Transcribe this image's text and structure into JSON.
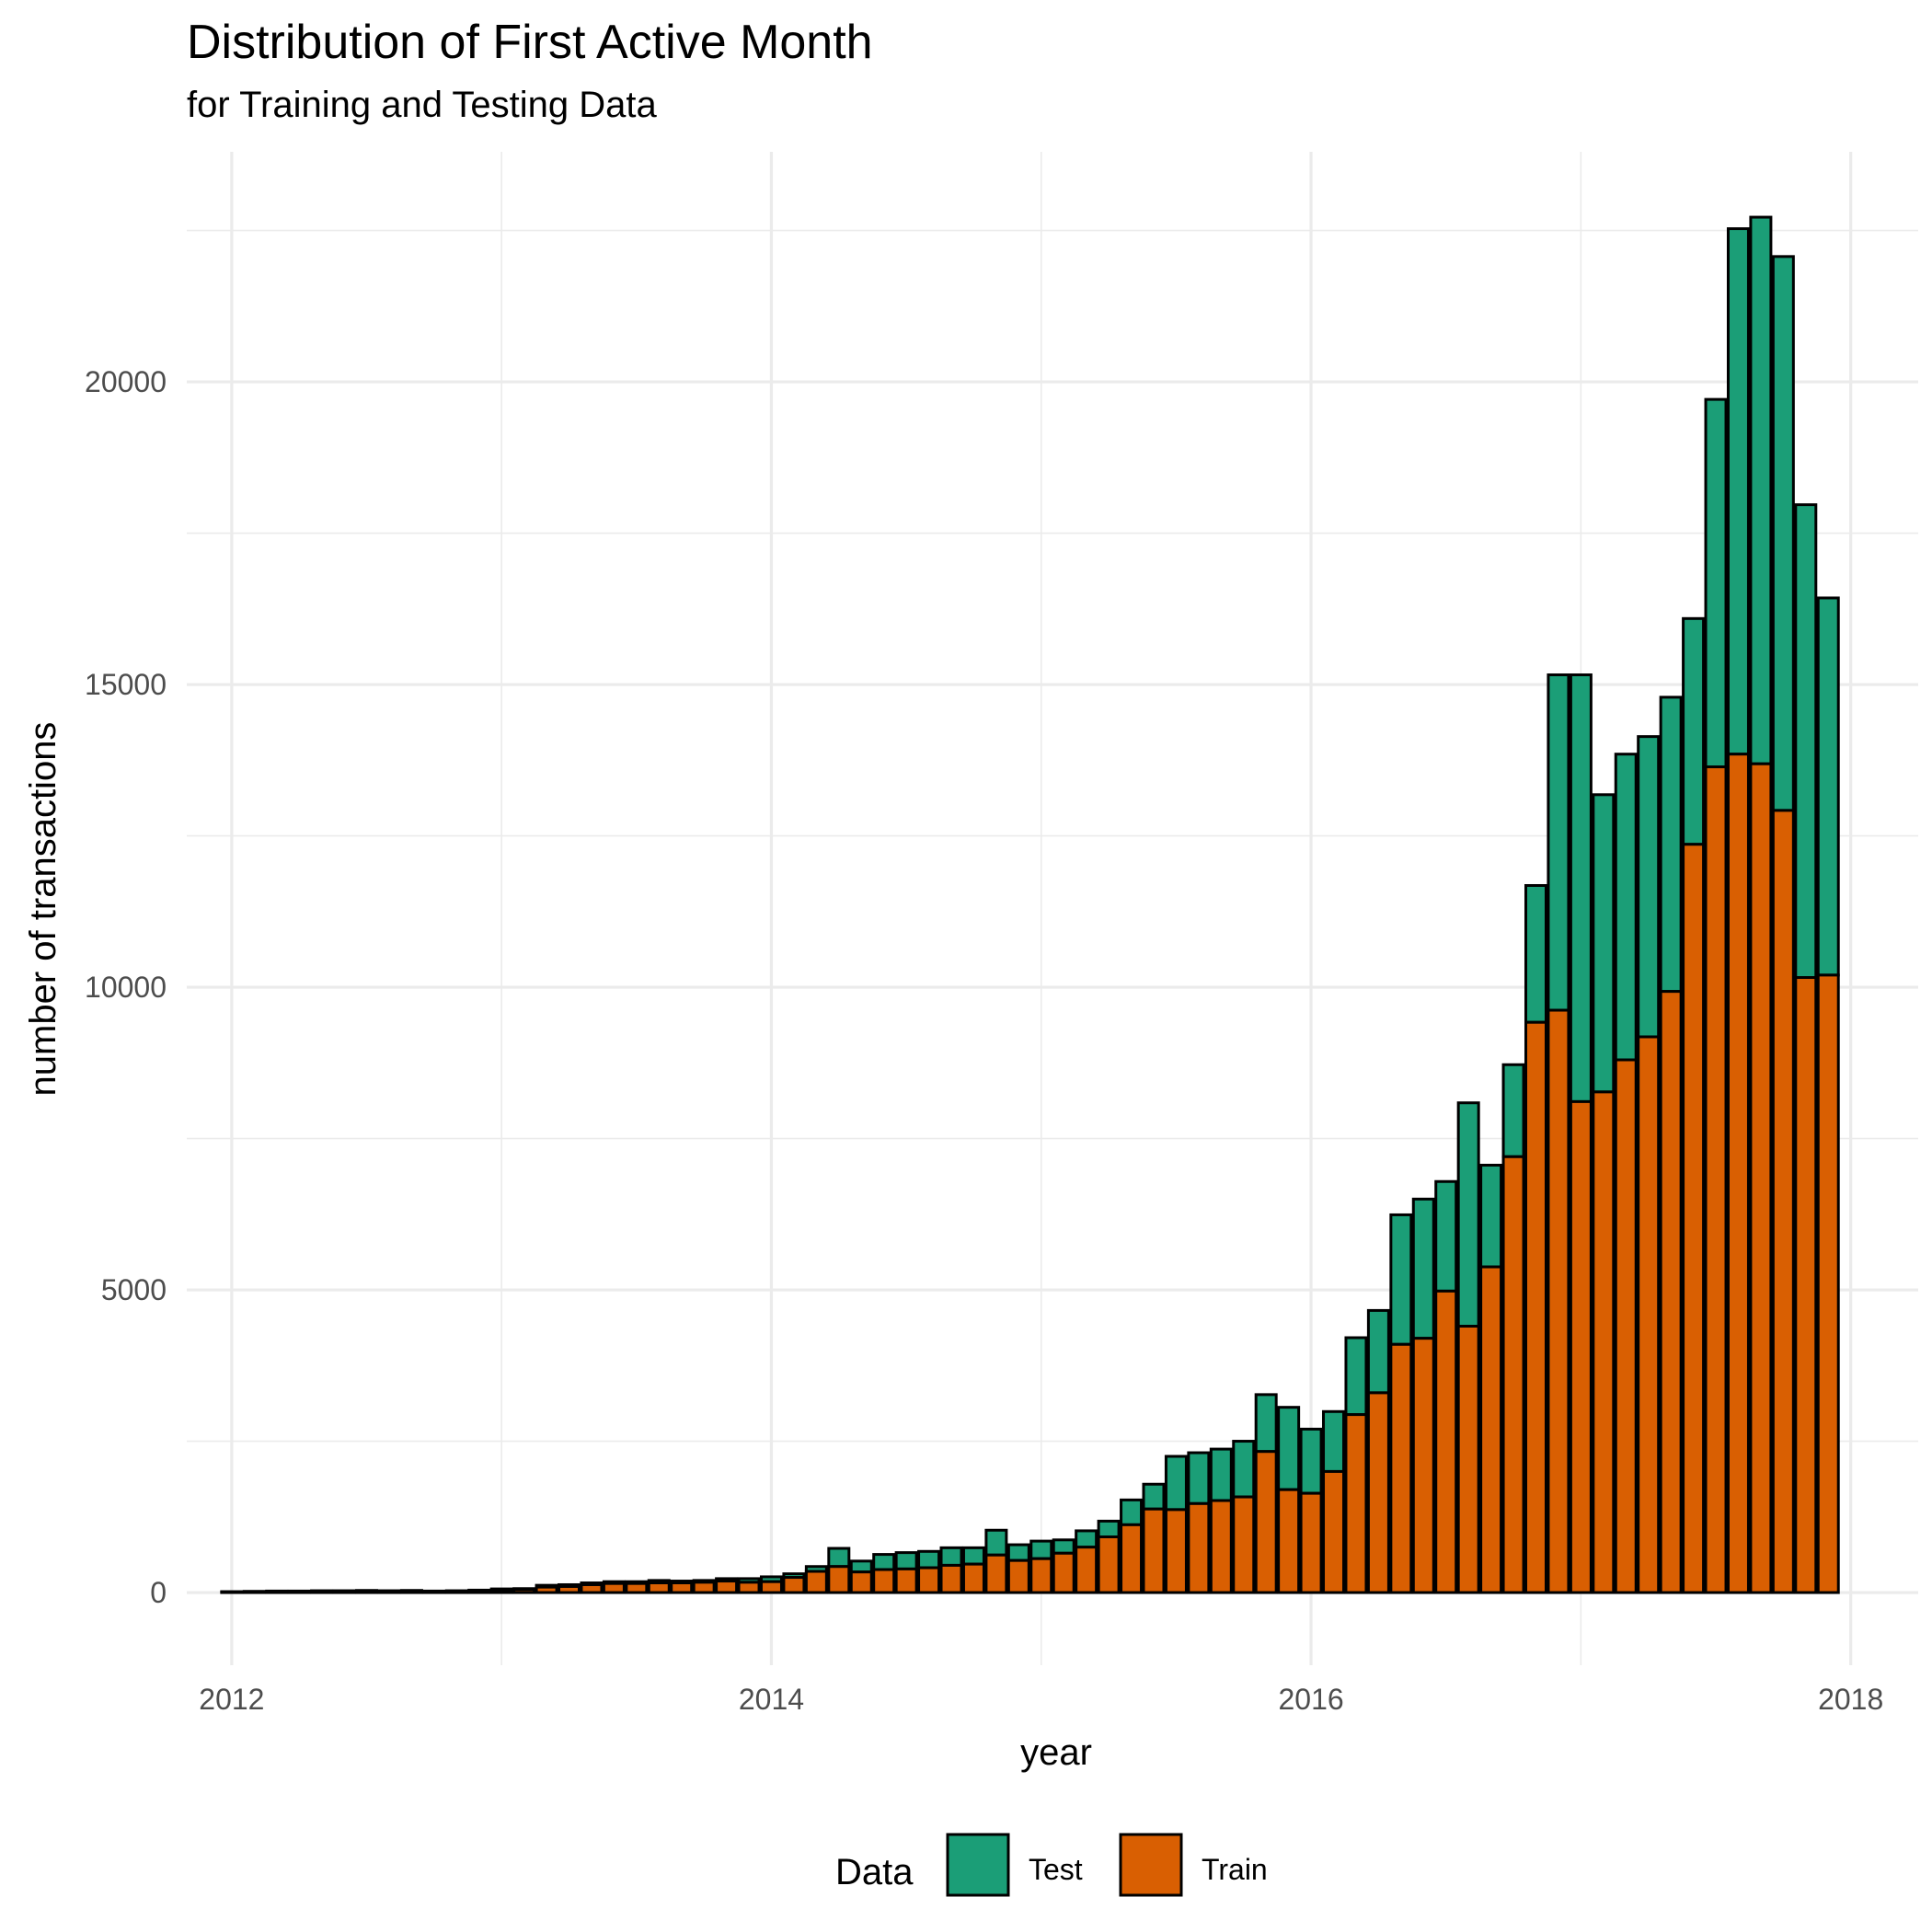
{
  "chart_data": {
    "type": "bar",
    "stacked": true,
    "title": "Distribution of First Active Month",
    "subtitle": "for Training and Testing Data",
    "xlabel": "year",
    "ylabel": "number of transactions",
    "xlim": [
      "2011-11",
      "2018-04"
    ],
    "ylim": [
      -1200,
      23800
    ],
    "x_ticks": [
      "2012",
      "2014",
      "2016",
      "2018"
    ],
    "y_ticks": [
      "0",
      "5000",
      "10000",
      "15000",
      "20000"
    ],
    "grid": true,
    "legend": {
      "title": "Data",
      "position": "bottom"
    },
    "colors": {
      "Test": "#1b9e77",
      "Train": "#d95f02",
      "outline": "#000000",
      "grid": "#ebebeb",
      "background": "#ffffff"
    },
    "x": [
      "2012-01",
      "2012-02",
      "2012-03",
      "2012-04",
      "2012-05",
      "2012-06",
      "2012-07",
      "2012-08",
      "2012-09",
      "2012-10",
      "2012-11",
      "2012-12",
      "2013-01",
      "2013-02",
      "2013-03",
      "2013-04",
      "2013-05",
      "2013-06",
      "2013-07",
      "2013-08",
      "2013-09",
      "2013-10",
      "2013-11",
      "2013-12",
      "2014-01",
      "2014-02",
      "2014-03",
      "2014-04",
      "2014-05",
      "2014-06",
      "2014-07",
      "2014-08",
      "2014-09",
      "2014-10",
      "2014-11",
      "2014-12",
      "2015-01",
      "2015-02",
      "2015-03",
      "2015-04",
      "2015-05",
      "2015-06",
      "2015-07",
      "2015-08",
      "2015-09",
      "2015-10",
      "2015-11",
      "2015-12",
      "2016-01",
      "2016-02",
      "2016-03",
      "2016-04",
      "2016-05",
      "2016-06",
      "2016-07",
      "2016-08",
      "2016-09",
      "2016-10",
      "2016-11",
      "2016-12",
      "2017-01",
      "2017-02",
      "2017-03",
      "2017-04",
      "2017-05",
      "2017-06",
      "2017-07",
      "2017-08",
      "2017-09",
      "2017-10",
      "2017-11",
      "2017-12"
    ],
    "series": [
      {
        "name": "Train",
        "values": [
          10,
          15,
          20,
          20,
          25,
          25,
          30,
          25,
          30,
          20,
          25,
          35,
          45,
          50,
          90,
          100,
          130,
          150,
          150,
          160,
          160,
          170,
          190,
          170,
          180,
          250,
          350,
          430,
          340,
          380,
          390,
          410,
          450,
          470,
          620,
          530,
          560,
          650,
          750,
          920,
          1120,
          1380,
          1370,
          1470,
          1520,
          1580,
          2330,
          1700,
          1640,
          2000,
          2940,
          3300,
          4100,
          4200,
          4980,
          4400,
          5380,
          7200,
          9420,
          9620,
          8110,
          8270,
          8800,
          9180,
          9930,
          12360,
          13640,
          13850,
          13690,
          12920,
          10160,
          10200
        ]
      },
      {
        "name": "Test",
        "values": [
          5,
          5,
          5,
          5,
          5,
          5,
          5,
          5,
          5,
          5,
          5,
          5,
          15,
          15,
          30,
          30,
          30,
          30,
          30,
          40,
          30,
          30,
          40,
          60,
          80,
          60,
          80,
          300,
          180,
          250,
          270,
          270,
          290,
          270,
          410,
          260,
          290,
          220,
          270,
          260,
          410,
          410,
          880,
          840,
          850,
          920,
          940,
          1360,
          1060,
          990,
          1270,
          1360,
          2140,
          2300,
          1810,
          3690,
          1680,
          1520,
          2260,
          5540,
          7050,
          4910,
          5050,
          4960,
          4860,
          3730,
          6070,
          8680,
          9030,
          9150,
          7810,
          6230
        ]
      }
    ]
  }
}
